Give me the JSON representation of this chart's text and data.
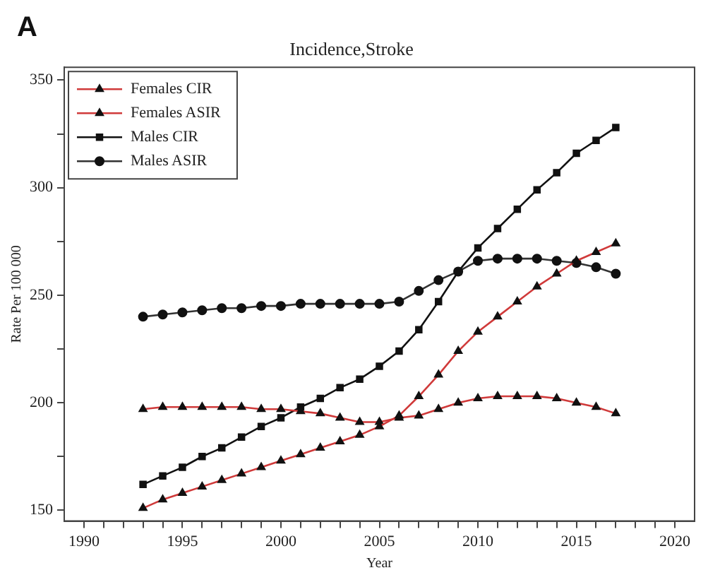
{
  "chart_data": {
    "type": "line",
    "title": "Incidence,Stroke",
    "xlabel": "Year",
    "ylabel": "Rate Per 100 000",
    "annotations": [
      "A"
    ],
    "x": [
      1993,
      1994,
      1995,
      1996,
      1997,
      1998,
      1999,
      2000,
      2001,
      2002,
      2003,
      2004,
      2005,
      2006,
      2007,
      2008,
      2009,
      2010,
      2011,
      2012,
      2013,
      2014,
      2015,
      2016,
      2017
    ],
    "series": [
      {
        "name": "Females CIR",
        "color": "#d03a3a",
        "marker": "triangle",
        "values": [
          151,
          155,
          158,
          161,
          164,
          167,
          170,
          173,
          176,
          179,
          182,
          185,
          189,
          194,
          203,
          213,
          224,
          233,
          240,
          247,
          254,
          260,
          266,
          270,
          274
        ]
      },
      {
        "name": "Females ASIR",
        "color": "#d03a3a",
        "marker": "triangle",
        "values": [
          197,
          198,
          198,
          198,
          198,
          198,
          197,
          197,
          196,
          195,
          193,
          191,
          191,
          193,
          194,
          197,
          200,
          202,
          203,
          203,
          203,
          202,
          200,
          198,
          195
        ]
      },
      {
        "name": "Males CIR",
        "color": "#111111",
        "marker": "square",
        "values": [
          162,
          166,
          170,
          175,
          179,
          184,
          189,
          193,
          198,
          202,
          207,
          211,
          217,
          224,
          234,
          247,
          261,
          272,
          281,
          290,
          299,
          307,
          316,
          322,
          328
        ]
      },
      {
        "name": "Males ASIR",
        "color": "#333333",
        "marker": "circle",
        "values": [
          240,
          241,
          242,
          243,
          244,
          244,
          245,
          245,
          246,
          246,
          246,
          246,
          246,
          247,
          252,
          257,
          261,
          266,
          267,
          267,
          267,
          266,
          265,
          263,
          260
        ]
      }
    ],
    "xlim": [
      1989,
      2021
    ],
    "xticks": [
      1990,
      {
        "value": 1991,
        "label": null
      },
      {
        "value": 1992,
        "label": null
      },
      {
        "value": 1993,
        "label": null
      },
      {
        "value": 1994,
        "label": null
      },
      1995,
      {
        "value": 1996,
        "label": null
      },
      {
        "value": 1997,
        "label": null
      },
      {
        "value": 1998,
        "label": null
      },
      {
        "value": 1999,
        "label": null
      },
      2000,
      {
        "value": 2001,
        "label": null
      },
      {
        "value": 2002,
        "label": null
      },
      {
        "value": 2003,
        "label": null
      },
      {
        "value": 2004,
        "label": null
      },
      2005,
      {
        "value": 2006,
        "label": null
      },
      {
        "value": 2007,
        "label": null
      },
      {
        "value": 2008,
        "label": null
      },
      {
        "value": 2009,
        "label": null
      },
      2010,
      {
        "value": 2011,
        "label": null
      },
      {
        "value": 2012,
        "label": null
      },
      {
        "value": 2013,
        "label": null
      },
      {
        "value": 2014,
        "label": null
      },
      2015,
      {
        "value": 2016,
        "label": null
      },
      {
        "value": 2017,
        "label": null
      },
      {
        "value": 2018,
        "label": null
      },
      {
        "value": 2019,
        "label": null
      },
      2020
    ],
    "ylim": [
      145,
      356
    ],
    "yticks": [
      150,
      {
        "value": 175,
        "label": null
      },
      200,
      {
        "value": 225,
        "label": null
      },
      250,
      {
        "value": 275,
        "label": null
      },
      300,
      {
        "value": 325,
        "label": null
      },
      350
    ],
    "grid": false,
    "legend": "top left",
    "line_style": "solid"
  }
}
